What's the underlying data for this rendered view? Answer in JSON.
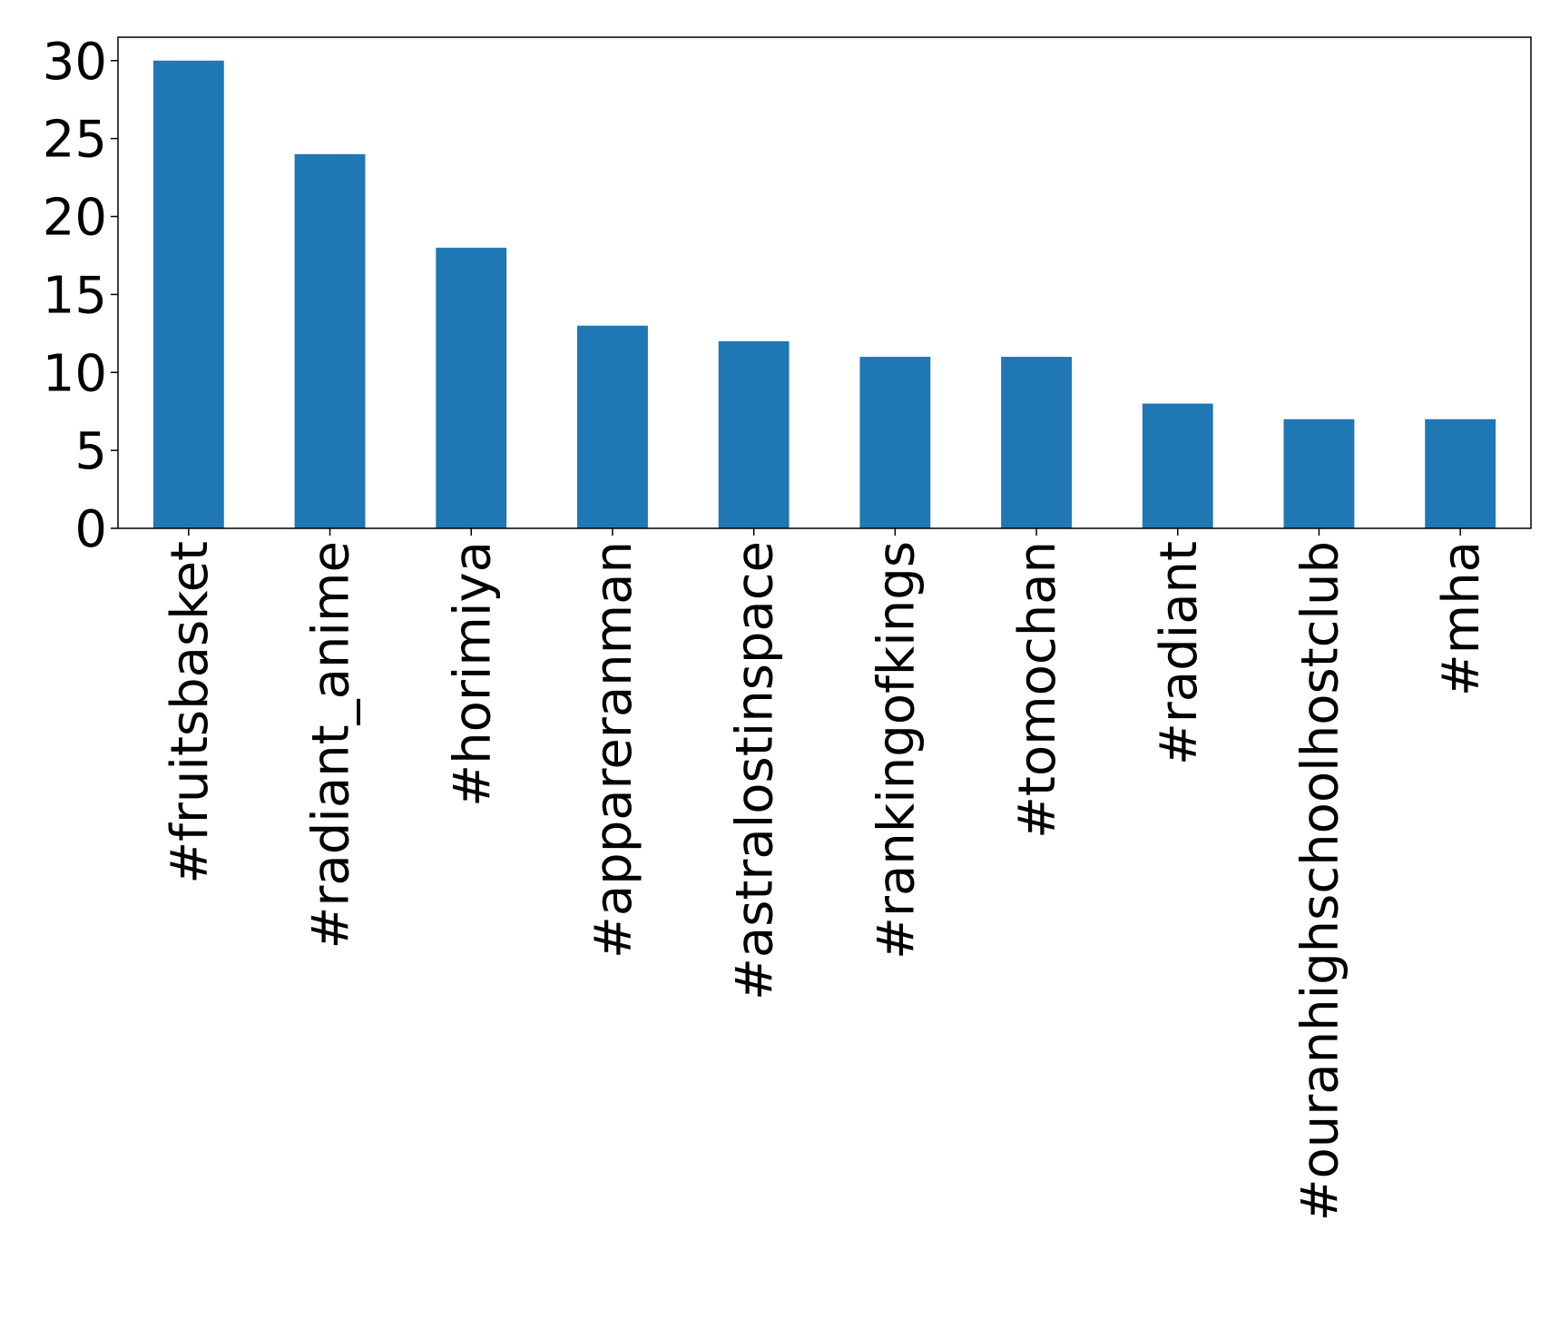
{
  "chart_data": {
    "type": "bar",
    "categories": [
      "#fruitsbasket",
      "#radiant_anime",
      "#horimiya",
      "#appareranman",
      "#astralostinspace",
      "#rankingofkings",
      "#tomochan",
      "#radiant",
      "#ouranhighschoolhostclub",
      "#mha"
    ],
    "values": [
      30,
      24,
      18,
      13,
      12,
      11,
      11,
      8,
      7,
      7
    ],
    "color": "#1f77b4",
    "ylim": [
      0,
      31.5
    ],
    "yticks": [
      0,
      5,
      10,
      15,
      20,
      25,
      30
    ],
    "grid": false
  }
}
